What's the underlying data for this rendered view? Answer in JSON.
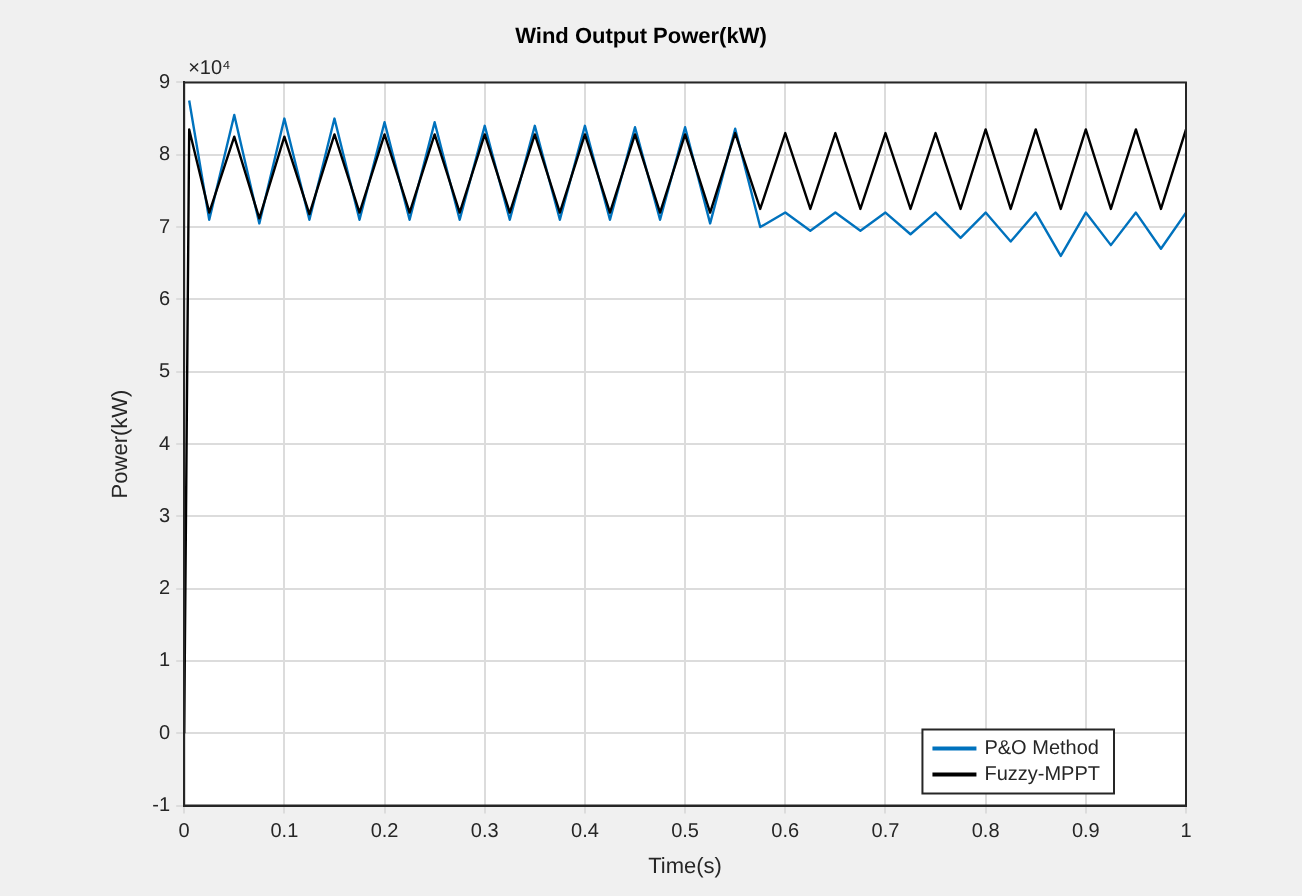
{
  "chart_data": {
    "type": "line",
    "title": "Wind Output Power(kW)",
    "xlabel": "Time(s)",
    "ylabel": "Power(kW)",
    "annotations": [
      "×10⁴"
    ],
    "xlim": [
      0,
      1
    ],
    "xticks": [
      0,
      0.1,
      0.2,
      0.3,
      0.4,
      0.5,
      0.6,
      0.7,
      0.8,
      0.9,
      1
    ],
    "ylim": [
      -1,
      9
    ],
    "yticks": [
      -1,
      0,
      1,
      2,
      3,
      4,
      5,
      6,
      7,
      8,
      9
    ],
    "grid": true,
    "legend": "bottom right",
    "marker": "none",
    "line_style": "solid",
    "series": [
      {
        "name": "P&O Method",
        "color": "#0072bd",
        "x": [
          0.005,
          0.025,
          0.05,
          0.075,
          0.1,
          0.125,
          0.15,
          0.175,
          0.2,
          0.225,
          0.25,
          0.275,
          0.3,
          0.325,
          0.35,
          0.375,
          0.4,
          0.425,
          0.45,
          0.475,
          0.5,
          0.525,
          0.55,
          0.575,
          0.6,
          0.625,
          0.65,
          0.675,
          0.7,
          0.725,
          0.75,
          0.775,
          0.8,
          0.825,
          0.85,
          0.875,
          0.9,
          0.925,
          0.95,
          0.975,
          1
        ],
        "values": [
          8.75,
          7.1,
          8.55,
          7.05,
          8.5,
          7.1,
          8.5,
          7.1,
          8.45,
          7.1,
          8.45,
          7.1,
          8.4,
          7.1,
          8.4,
          7.1,
          8.4,
          7.1,
          8.38,
          7.1,
          8.38,
          7.05,
          8.36,
          7.0,
          7.2,
          6.95,
          7.2,
          6.95,
          7.2,
          6.9,
          7.2,
          6.85,
          7.2,
          6.8,
          7.2,
          6.6,
          7.2,
          6.75,
          7.2,
          6.7,
          7.2
        ]
      },
      {
        "name": "Fuzzy-MPPT",
        "color": "#000000",
        "x": [
          0,
          0.005,
          0.025,
          0.05,
          0.075,
          0.1,
          0.125,
          0.15,
          0.175,
          0.2,
          0.225,
          0.25,
          0.275,
          0.3,
          0.325,
          0.35,
          0.375,
          0.4,
          0.425,
          0.45,
          0.475,
          0.5,
          0.525,
          0.55,
          0.575,
          0.6,
          0.625,
          0.65,
          0.675,
          0.7,
          0.725,
          0.75,
          0.775,
          0.8,
          0.825,
          0.85,
          0.875,
          0.9,
          0.925,
          0.95,
          0.975,
          1
        ],
        "values": [
          0,
          8.35,
          7.2,
          8.25,
          7.12,
          8.25,
          7.18,
          8.28,
          7.2,
          8.28,
          7.2,
          8.28,
          7.2,
          8.28,
          7.2,
          8.28,
          7.2,
          8.28,
          7.2,
          8.28,
          7.2,
          8.28,
          7.2,
          8.3,
          7.25,
          8.3,
          7.25,
          8.3,
          7.25,
          8.3,
          7.25,
          8.3,
          7.25,
          8.35,
          7.25,
          8.35,
          7.25,
          8.35,
          7.25,
          8.35,
          7.25,
          8.35
        ]
      }
    ]
  }
}
